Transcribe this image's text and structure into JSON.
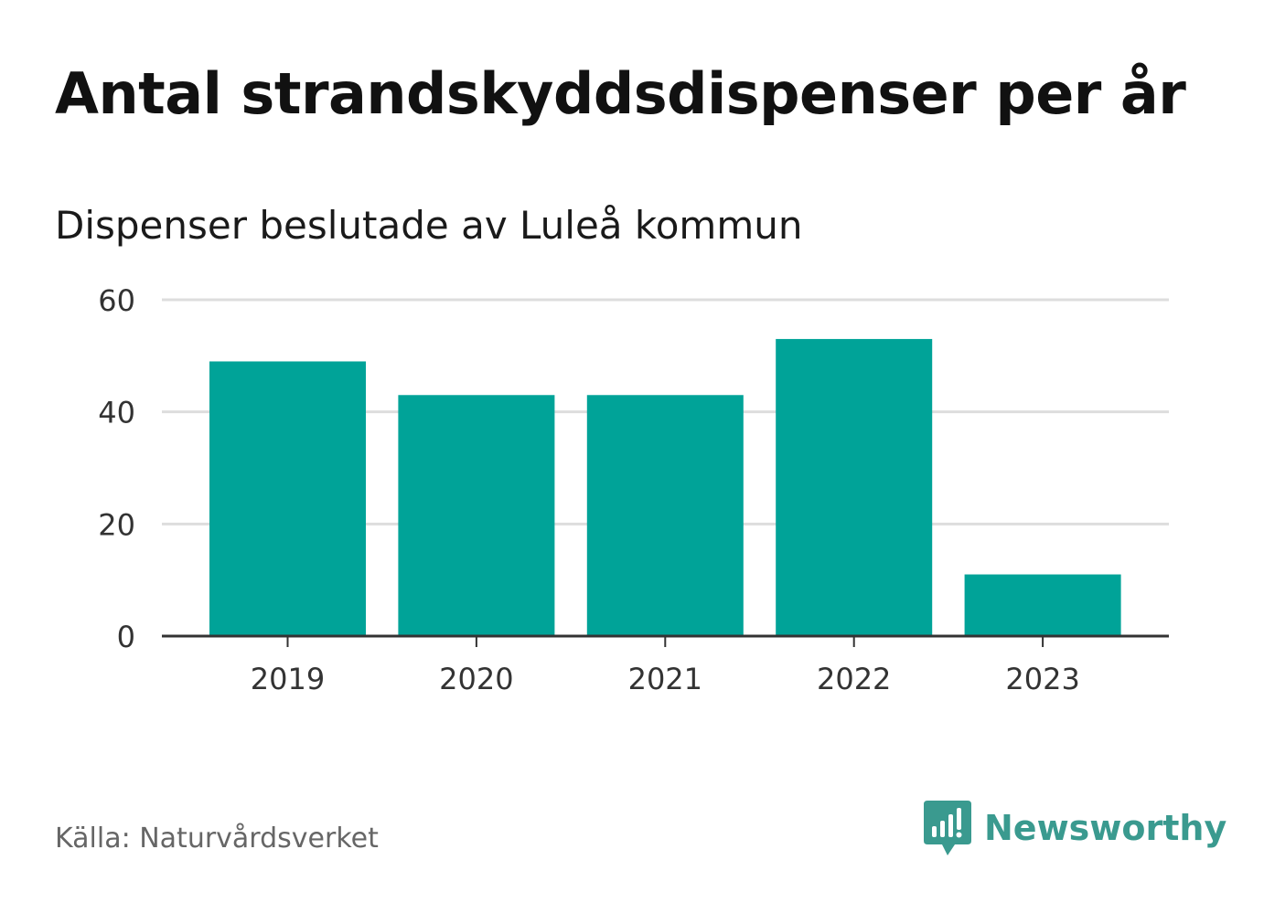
{
  "title": "Antal strandskyddsdispenser per år",
  "subtitle": "Dispenser beslutade av Luleå kommun",
  "source": "Källa: Naturvårdsverket",
  "brand": {
    "name": "Newsworthy",
    "icon": "newsworthy-logo-icon",
    "color": "#3a9a8f"
  },
  "colors": {
    "bar": "#00a398",
    "grid": "#dddddd",
    "axis": "#333333",
    "tick_text": "#333333"
  },
  "chart_data": {
    "type": "bar",
    "title": "Antal strandskyddsdispenser per år",
    "subtitle": "Dispenser beslutade av Luleå kommun",
    "categories": [
      "2019",
      "2020",
      "2021",
      "2022",
      "2023"
    ],
    "values": [
      49,
      43,
      43,
      53,
      11
    ],
    "xlabel": "",
    "ylabel": "",
    "ylim": [
      0,
      60
    ],
    "yticks": [
      0,
      20,
      40,
      60
    ],
    "ytick_labels": [
      "0",
      "20",
      "40",
      "60"
    ],
    "grid": true,
    "legend": "none"
  }
}
